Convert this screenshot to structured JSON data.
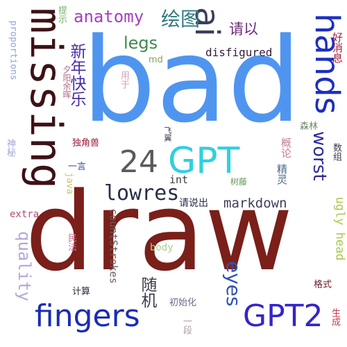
{
  "words": [
    {
      "text": "bad",
      "color": "#4f95ef"
    },
    {
      "text": "draw",
      "color": "#7a1f1a"
    },
    {
      "text": "missing",
      "color": "#3d1216"
    },
    {
      "text": "hands",
      "color": "#1c2fbf"
    },
    {
      "text": "ai",
      "color": "#3a3f5c"
    },
    {
      "text": "fingers",
      "color": "#1a2db3"
    },
    {
      "text": "GPT",
      "color": "#2fd0e0"
    },
    {
      "text": "GPT2",
      "color": "#3325c8"
    },
    {
      "text": "24",
      "color": "#5a5a5a"
    },
    {
      "text": "anatomy",
      "color": "#a53fc0"
    },
    {
      "text": "lowres",
      "color": "#2a2e45"
    },
    {
      "text": "markdown",
      "color": "#3d3f5a"
    },
    {
      "text": "legs",
      "color": "#3b8a4a"
    },
    {
      "text": "worst",
      "color": "#2e2b9a"
    },
    {
      "text": "eyes",
      "color": "#2f52b8"
    },
    {
      "text": "quality",
      "color": "#b5a6d6"
    },
    {
      "text": "proportions",
      "color": "#8fa4d9"
    },
    {
      "text": "disfigured",
      "color": "#34203a"
    },
    {
      "text": "countStrokes",
      "color": "#6e5c59"
    },
    {
      "text": "ugly head",
      "color": "#a7c94a"
    },
    {
      "text": "extra",
      "color": "#b04e7a"
    },
    {
      "text": "java",
      "color": "#c0c86a"
    },
    {
      "text": "int",
      "color": "#3d3d3d"
    },
    {
      "text": "body",
      "color": "#a7d38f"
    },
    {
      "text": "md",
      "color": "#8aa05f"
    },
    {
      "text": "绘图",
      "color": "#2f7a80"
    },
    {
      "text": "请以",
      "color": "#6c2a7a"
    },
    {
      "text": "新年快乐",
      "color": "#4a2ba8"
    },
    {
      "text": "随机",
      "color": "#3c3c4c"
    },
    {
      "text": "提示",
      "color": "#7ab06a"
    },
    {
      "text": "夕阳余晖",
      "color": "#b26a8a"
    },
    {
      "text": "好消息",
      "color": "#a4203a"
    },
    {
      "text": "用于",
      "color": "#d0a0b6"
    },
    {
      "text": "森林",
      "color": "#6a8a6a"
    },
    {
      "text": "神秘",
      "color": "#a0a8d6"
    },
    {
      "text": "飞翼",
      "color": "#3a3a4a"
    },
    {
      "text": "独角兽",
      "color": "#9a1a38"
    },
    {
      "text": "概论",
      "color": "#c08090"
    },
    {
      "text": "数组",
      "color": "#3a3a4a"
    },
    {
      "text": "一言",
      "color": "#3a4a9a"
    },
    {
      "text": "精灵",
      "color": "#4a6a8a"
    },
    {
      "text": "树藤",
      "color": "#6a9a5a"
    },
    {
      "text": "请说出",
      "color": "#2a2a4a"
    },
    {
      "text": "民法",
      "color": "#d07090"
    },
    {
      "text": "计算",
      "color": "#2a2a3a"
    },
    {
      "text": "初始化",
      "color": "#6a6a8a"
    },
    {
      "text": "一段",
      "color": "#b09aa0"
    },
    {
      "text": "格式",
      "color": "#6a1a2a"
    },
    {
      "text": "生成",
      "color": "#c83a4a"
    }
  ]
}
